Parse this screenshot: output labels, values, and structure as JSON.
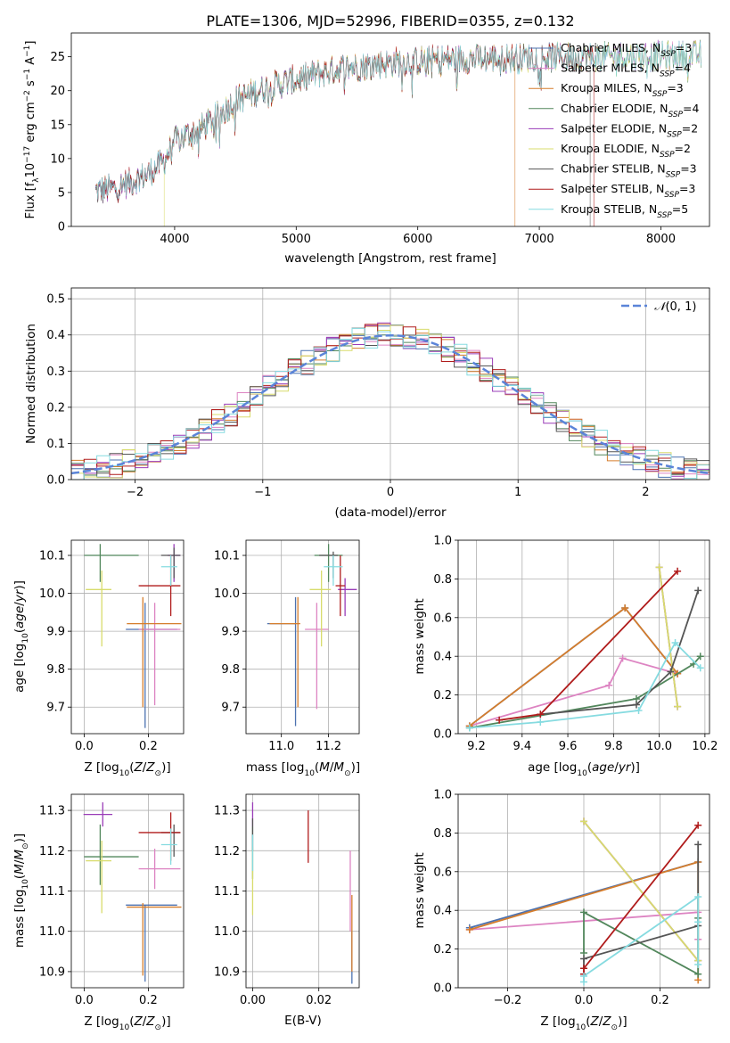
{
  "figure": {
    "title": "PLATE=1306, MJD=52996, FIBERID=0355, z=0.132"
  },
  "series_styles": [
    {
      "name": "Chabrier MILES, N_SSP=3",
      "color": "#4c72b0"
    },
    {
      "name": "Salpeter MILES, N_SSP=4",
      "color": "#dd84c2"
    },
    {
      "name": "Kroupa MILES, N_SSP=3",
      "color": "#d57d2c"
    },
    {
      "name": "Chabrier ELODIE, N_SSP=4",
      "color": "#52875c"
    },
    {
      "name": "Salpeter ELODIE, N_SSP=2",
      "color": "#9a3cb8"
    },
    {
      "name": "Kroupa ELODIE, N_SSP=2",
      "color": "#d8dc6c"
    },
    {
      "name": "Chabrier STELIB, N_SSP=3",
      "color": "#555555"
    },
    {
      "name": "Salpeter STELIB, N_SSP=3",
      "color": "#b01c1c"
    },
    {
      "name": "Kroupa STELIB, N_SSP=5",
      "color": "#86dbe0"
    }
  ],
  "chart_data": [
    {
      "id": "spectrum",
      "type": "line",
      "title": "PLATE=1306, MJD=52996, FIBERID=0355, z=0.132",
      "xlabel": "wavelength [Angstrom, rest frame]",
      "ylabel": "Flux [f_λ 10^-17 erg cm^-2 s^-1 A^-1]",
      "xlim": [
        3150,
        8400
      ],
      "ylim": [
        0,
        28.5
      ],
      "xticks": [
        4000,
        5000,
        6000,
        7000,
        8000
      ],
      "yticks": [
        0,
        5,
        10,
        15,
        20,
        25
      ],
      "legend": {
        "placement": "top-right",
        "entries": [
          {
            "base": "Chabrier MILES, N",
            "sub": "SSP",
            "tail": "=3"
          },
          {
            "base": "Salpeter MILES, N",
            "sub": "SSP",
            "tail": "=4"
          },
          {
            "base": "Kroupa MILES, N",
            "sub": "SSP",
            "tail": "=3"
          },
          {
            "base": "Chabrier ELODIE, N",
            "sub": "SSP",
            "tail": "=4"
          },
          {
            "base": "Salpeter ELODIE, N",
            "sub": "SSP",
            "tail": "=2"
          },
          {
            "base": "Kroupa ELODIE, N",
            "sub": "SSP",
            "tail": "=2"
          },
          {
            "base": "Chabrier STELIB, N",
            "sub": "SSP",
            "tail": "=3"
          },
          {
            "base": "Salpeter STELIB, N",
            "sub": "SSP",
            "tail": "=3"
          },
          {
            "base": "Kroupa STELIB, N",
            "sub": "SSP",
            "tail": "=5"
          }
        ]
      },
      "continuum": {
        "x": [
          3350,
          3500,
          3600,
          3700,
          3800,
          3900,
          4000,
          4100,
          4200,
          4300,
          4400,
          4500,
          4600,
          4700,
          4800,
          4900,
          5000,
          5200,
          5400,
          5600,
          5800,
          6000,
          6200,
          6400,
          6600,
          6800,
          7000,
          7200,
          7400,
          7600,
          7800,
          8000,
          8200
        ],
        "y": [
          5.2,
          5.6,
          6.3,
          7.0,
          8.0,
          9.3,
          12.5,
          13.5,
          14.2,
          15.5,
          17.0,
          18.5,
          19.3,
          20.1,
          20.7,
          21.2,
          21.6,
          22.6,
          23.4,
          23.8,
          24.2,
          24.4,
          24.6,
          24.7,
          24.8,
          24.8,
          24.9,
          24.9,
          25.0,
          25.0,
          25.1,
          25.1,
          25.2
        ]
      },
      "noise_amplitude": 2.0,
      "wavelength_range_by_series": [
        [
          3350,
          8330
        ],
        [
          3350,
          8330
        ],
        [
          3350,
          6800
        ],
        [
          3350,
          8330
        ],
        [
          3350,
          8330
        ],
        [
          3910,
          8330
        ],
        [
          3350,
          7420
        ],
        [
          3350,
          7450
        ],
        [
          3350,
          8330
        ]
      ]
    },
    {
      "id": "residual_histogram",
      "type": "histogram",
      "xlabel": "(data-model)/error",
      "ylabel": "Normed distribution",
      "xlim": [
        -2.5,
        2.5
      ],
      "ylim": [
        0,
        0.53
      ],
      "xticks": [
        -2,
        -1,
        0,
        1,
        2
      ],
      "yticks": [
        0.0,
        0.1,
        0.2,
        0.3,
        0.4,
        0.5
      ],
      "bin_width": 0.1,
      "reference_curve": {
        "label": "N(0,1)",
        "mean": 0,
        "sigma": 1,
        "color": "#5b84d8"
      },
      "legend": {
        "placement": "top-right"
      },
      "note": "nine step histograms (one per model) scattered around the reference normal curve"
    },
    {
      "id": "age_vs_Z",
      "type": "errorbar",
      "xlabel": "Z [log10(Z/Z_sun)]",
      "ylabel": "age [log10(age/yr)]",
      "xlim": [
        -0.04,
        0.31
      ],
      "ylim": [
        9.63,
        10.14
      ],
      "xticks": [
        0.0,
        0.2
      ],
      "yticks": [
        9.7,
        9.8,
        9.9,
        10.0,
        10.1
      ],
      "points": [
        {
          "series": 0,
          "x": 0.19,
          "xerr": [
            0.06,
            0.1
          ],
          "y": 9.905,
          "yerr": [
            0.26,
            0.07
          ]
        },
        {
          "series": 1,
          "x": 0.22,
          "xerr": [
            0.05,
            0.08
          ],
          "y": 9.905,
          "yerr": [
            0.2,
            0.07
          ]
        },
        {
          "series": 2,
          "x": 0.183,
          "xerr": [
            0.05,
            0.12
          ],
          "y": 9.92,
          "yerr": [
            0.22,
            0.07
          ]
        },
        {
          "series": 3,
          "x": 0.05,
          "xerr": [
            0.05,
            0.12
          ],
          "y": 10.1,
          "yerr": [
            0.07,
            0.03
          ]
        },
        {
          "series": 4,
          "x": 0.28,
          "xerr": [
            0.02,
            0.02
          ],
          "y": 10.1,
          "yerr": [
            0.07,
            0.03
          ]
        },
        {
          "series": 5,
          "x": 0.055,
          "xerr": [
            0.05,
            0.03
          ],
          "y": 10.01,
          "yerr": [
            0.15,
            0.05
          ]
        },
        {
          "series": 6,
          "x": 0.28,
          "xerr": [
            0.04,
            0.02
          ],
          "y": 10.1,
          "yerr": [
            0.06,
            0.02
          ]
        },
        {
          "series": 7,
          "x": 0.27,
          "xerr": [
            0.1,
            0.03
          ],
          "y": 10.02,
          "yerr": [
            0.08,
            0.08
          ]
        },
        {
          "series": 8,
          "x": 0.27,
          "xerr": [
            0.03,
            0.02
          ],
          "y": 10.07,
          "yerr": [
            0.05,
            0.03
          ]
        }
      ]
    },
    {
      "id": "age_vs_mass",
      "type": "errorbar",
      "xlabel": "mass [log10(M/M_sun)]",
      "ylabel": "",
      "xlim": [
        10.85,
        11.33
      ],
      "ylim": [
        9.63,
        10.14
      ],
      "xticks": [
        11.0,
        11.2
      ],
      "yticks": [
        9.7,
        9.8,
        9.9,
        10.0,
        10.1
      ],
      "points": [
        {
          "series": 0,
          "x": 11.06,
          "xerr": [
            0.12,
            0.0
          ],
          "y": 9.92,
          "yerr": [
            0.27,
            0.07
          ]
        },
        {
          "series": 1,
          "x": 11.15,
          "xerr": [
            0.05,
            0.05
          ],
          "y": 9.905,
          "yerr": [
            0.21,
            0.07
          ]
        },
        {
          "series": 2,
          "x": 11.07,
          "xerr": [
            0.12,
            0.01
          ],
          "y": 9.92,
          "yerr": [
            0.22,
            0.07
          ]
        },
        {
          "series": 3,
          "x": 11.2,
          "xerr": [
            0.06,
            0.06
          ],
          "y": 10.1,
          "yerr": [
            0.07,
            0.03
          ]
        },
        {
          "series": 4,
          "x": 11.27,
          "xerr": [
            0.03,
            0.05
          ],
          "y": 10.01,
          "yerr": [
            0.07,
            0.03
          ]
        },
        {
          "series": 5,
          "x": 11.17,
          "xerr": [
            0.05,
            0.04
          ],
          "y": 10.01,
          "yerr": [
            0.15,
            0.05
          ]
        },
        {
          "series": 6,
          "x": 11.22,
          "xerr": [
            0.06,
            0.02
          ],
          "y": 10.1,
          "yerr": [
            0.06,
            0.01
          ]
        },
        {
          "series": 7,
          "x": 11.25,
          "xerr": [
            0.02,
            0.02
          ],
          "y": 10.02,
          "yerr": [
            0.08,
            0.08
          ]
        },
        {
          "series": 8,
          "x": 11.22,
          "xerr": [
            0.04,
            0.04
          ],
          "y": 10.07,
          "yerr": [
            0.05,
            0.03
          ]
        }
      ]
    },
    {
      "id": "mass_weight_vs_age",
      "type": "line",
      "xlabel": "age [log10(age/yr)]",
      "ylabel": "mass weight",
      "xlim": [
        9.12,
        10.22
      ],
      "ylim": [
        0,
        1.0
      ],
      "xticks": [
        9.2,
        9.4,
        9.6,
        9.8,
        10.0,
        10.2
      ],
      "yticks": [
        0.0,
        0.2,
        0.4,
        0.6,
        0.8,
        1.0
      ],
      "series": [
        {
          "series": 0,
          "x": [
            9.17,
            9.85,
            10.08
          ],
          "y": [
            0.04,
            0.65,
            0.31
          ]
        },
        {
          "series": 1,
          "x": [
            9.17,
            9.78,
            9.84,
            10.08
          ],
          "y": [
            0.04,
            0.25,
            0.39,
            0.31
          ]
        },
        {
          "series": 2,
          "x": [
            9.17,
            9.85,
            10.08
          ],
          "y": [
            0.04,
            0.65,
            0.31
          ]
        },
        {
          "series": 3,
          "x": [
            9.17,
            9.9,
            10.15,
            10.18
          ],
          "y": [
            0.03,
            0.18,
            0.36,
            0.4
          ]
        },
        {
          "series": 4,
          "x": [
            10.0,
            10.08
          ],
          "y": [
            0.86,
            0.14
          ]
        },
        {
          "series": 5,
          "x": [
            10.0,
            10.08
          ],
          "y": [
            0.86,
            0.14
          ]
        },
        {
          "series": 6,
          "x": [
            9.48,
            9.9,
            10.05,
            10.17
          ],
          "y": [
            0.1,
            0.15,
            0.32,
            0.74
          ]
        },
        {
          "series": 7,
          "x": [
            9.3,
            9.48,
            10.08
          ],
          "y": [
            0.07,
            0.1,
            0.84
          ]
        },
        {
          "series": 8,
          "x": [
            9.17,
            9.48,
            9.91,
            10.07,
            10.18
          ],
          "y": [
            0.03,
            0.06,
            0.12,
            0.47,
            0.34
          ]
        }
      ]
    },
    {
      "id": "mass_vs_Z",
      "type": "errorbar",
      "xlabel": "Z [log10(Z/Z_sun)]",
      "ylabel": "mass [log10(M/M_sun)]",
      "xlim": [
        -0.04,
        0.31
      ],
      "ylim": [
        10.86,
        11.34
      ],
      "xticks": [
        0.0,
        0.2
      ],
      "yticks": [
        10.9,
        11.0,
        11.1,
        11.2,
        11.3
      ],
      "points": [
        {
          "series": 0,
          "x": 0.19,
          "xerr": [
            0.06,
            0.1
          ],
          "y": 11.065,
          "yerr": [
            0.19,
            0.0
          ]
        },
        {
          "series": 1,
          "x": 0.22,
          "xerr": [
            0.05,
            0.08
          ],
          "y": 11.155,
          "yerr": [
            0.05,
            0.05
          ]
        },
        {
          "series": 2,
          "x": 0.183,
          "xerr": [
            0.05,
            0.12
          ],
          "y": 11.06,
          "yerr": [
            0.17,
            0.01
          ]
        },
        {
          "series": 3,
          "x": 0.05,
          "xerr": [
            0.05,
            0.12
          ],
          "y": 11.185,
          "yerr": [
            0.07,
            0.08
          ]
        },
        {
          "series": 4,
          "x": 0.058,
          "xerr": [
            0.06,
            0.03
          ],
          "y": 11.29,
          "yerr": [
            0.03,
            0.03
          ]
        },
        {
          "series": 5,
          "x": 0.055,
          "xerr": [
            0.05,
            0.03
          ],
          "y": 11.175,
          "yerr": [
            0.13,
            0.05
          ]
        },
        {
          "series": 6,
          "x": 0.28,
          "xerr": [
            0.04,
            0.02
          ],
          "y": 11.245,
          "yerr": [
            0.06,
            0.02
          ]
        },
        {
          "series": 7,
          "x": 0.27,
          "xerr": [
            0.1,
            0.03
          ],
          "y": 11.245,
          "yerr": [
            0.07,
            0.05
          ]
        },
        {
          "series": 8,
          "x": 0.27,
          "xerr": [
            0.03,
            0.02
          ],
          "y": 11.215,
          "yerr": [
            0.05,
            0.04
          ]
        }
      ]
    },
    {
      "id": "mass_vs_ebv",
      "type": "errorbar",
      "xlabel": "E(B-V)",
      "ylabel": "",
      "xlim": [
        -0.002,
        0.0322
      ],
      "ylim": [
        10.86,
        11.34
      ],
      "xticks": [
        0.0,
        0.02
      ],
      "yticks": [
        10.9,
        11.0,
        11.1,
        11.2,
        11.3
      ],
      "points": [
        {
          "series": 0,
          "x": 0.03,
          "xerr": [
            0,
            0
          ],
          "y": 11.0,
          "yerr": [
            0.13,
            0.0
          ]
        },
        {
          "series": 1,
          "x": 0.0295,
          "xerr": [
            0,
            0
          ],
          "y": 11.1,
          "yerr": [
            0.1,
            0.1
          ]
        },
        {
          "series": 2,
          "x": 0.03,
          "xerr": [
            0,
            0
          ],
          "y": 11.0,
          "yerr": [
            0.1,
            0.09
          ]
        },
        {
          "series": 3,
          "x": 0.0,
          "xerr": [
            0,
            0
          ],
          "y": 11.2,
          "yerr": [
            0.07,
            0.06
          ]
        },
        {
          "series": 4,
          "x": 0.0,
          "xerr": [
            0,
            0
          ],
          "y": 11.29,
          "yerr": [
            0.03,
            0.03
          ]
        },
        {
          "series": 5,
          "x": 0.0,
          "xerr": [
            0,
            0
          ],
          "y": 11.15,
          "yerr": [
            0.11,
            0.06
          ]
        },
        {
          "series": 6,
          "x": 0.0,
          "xerr": [
            0,
            0
          ],
          "y": 11.25,
          "yerr": [
            0.05,
            0.03
          ]
        },
        {
          "series": 7,
          "x": 0.0168,
          "xerr": [
            0,
            0
          ],
          "y": 11.24,
          "yerr": [
            0.07,
            0.06
          ]
        },
        {
          "series": 8,
          "x": 0.0,
          "xerr": [
            0,
            0
          ],
          "y": 11.2,
          "yerr": [
            0.05,
            0.04
          ]
        }
      ]
    },
    {
      "id": "mass_weight_vs_Z",
      "type": "line",
      "xlabel": "Z [log10(Z/Z_sun)]",
      "ylabel": "mass weight",
      "xlim": [
        -0.33,
        0.33
      ],
      "ylim": [
        0,
        1.0
      ],
      "xticks": [
        -0.2,
        0.0,
        0.2
      ],
      "yticks": [
        0.0,
        0.2,
        0.4,
        0.6,
        0.8,
        1.0
      ],
      "series": [
        {
          "series": 0,
          "x": [
            -0.3,
            0.3
          ],
          "y": [
            0.31,
            0.65
          ]
        },
        {
          "series": 1,
          "x": [
            -0.3,
            0.3,
            0.3
          ],
          "y": [
            0.3,
            0.39,
            0.25
          ]
        },
        {
          "series": 2,
          "x": [
            -0.3,
            0.3,
            0.3
          ],
          "y": [
            0.3,
            0.65,
            0.04
          ]
        },
        {
          "series": 3,
          "x": [
            0.0,
            0.0,
            0.3,
            0.3
          ],
          "y": [
            0.18,
            0.39,
            0.07,
            0.36
          ]
        },
        {
          "series": 4,
          "x": [
            0.0,
            0.3
          ],
          "y": [
            0.86,
            0.14
          ]
        },
        {
          "series": 5,
          "x": [
            0.0,
            0.3
          ],
          "y": [
            0.86,
            0.14
          ]
        },
        {
          "series": 6,
          "x": [
            0.0,
            0.0,
            0.3,
            0.3
          ],
          "y": [
            0.1,
            0.15,
            0.32,
            0.74
          ]
        },
        {
          "series": 7,
          "x": [
            0.0,
            0.0,
            0.3
          ],
          "y": [
            0.07,
            0.1,
            0.84
          ]
        },
        {
          "series": 8,
          "x": [
            0.0,
            0.0,
            0.3,
            0.3,
            0.3
          ],
          "y": [
            0.03,
            0.06,
            0.47,
            0.34,
            0.12
          ]
        }
      ]
    }
  ]
}
